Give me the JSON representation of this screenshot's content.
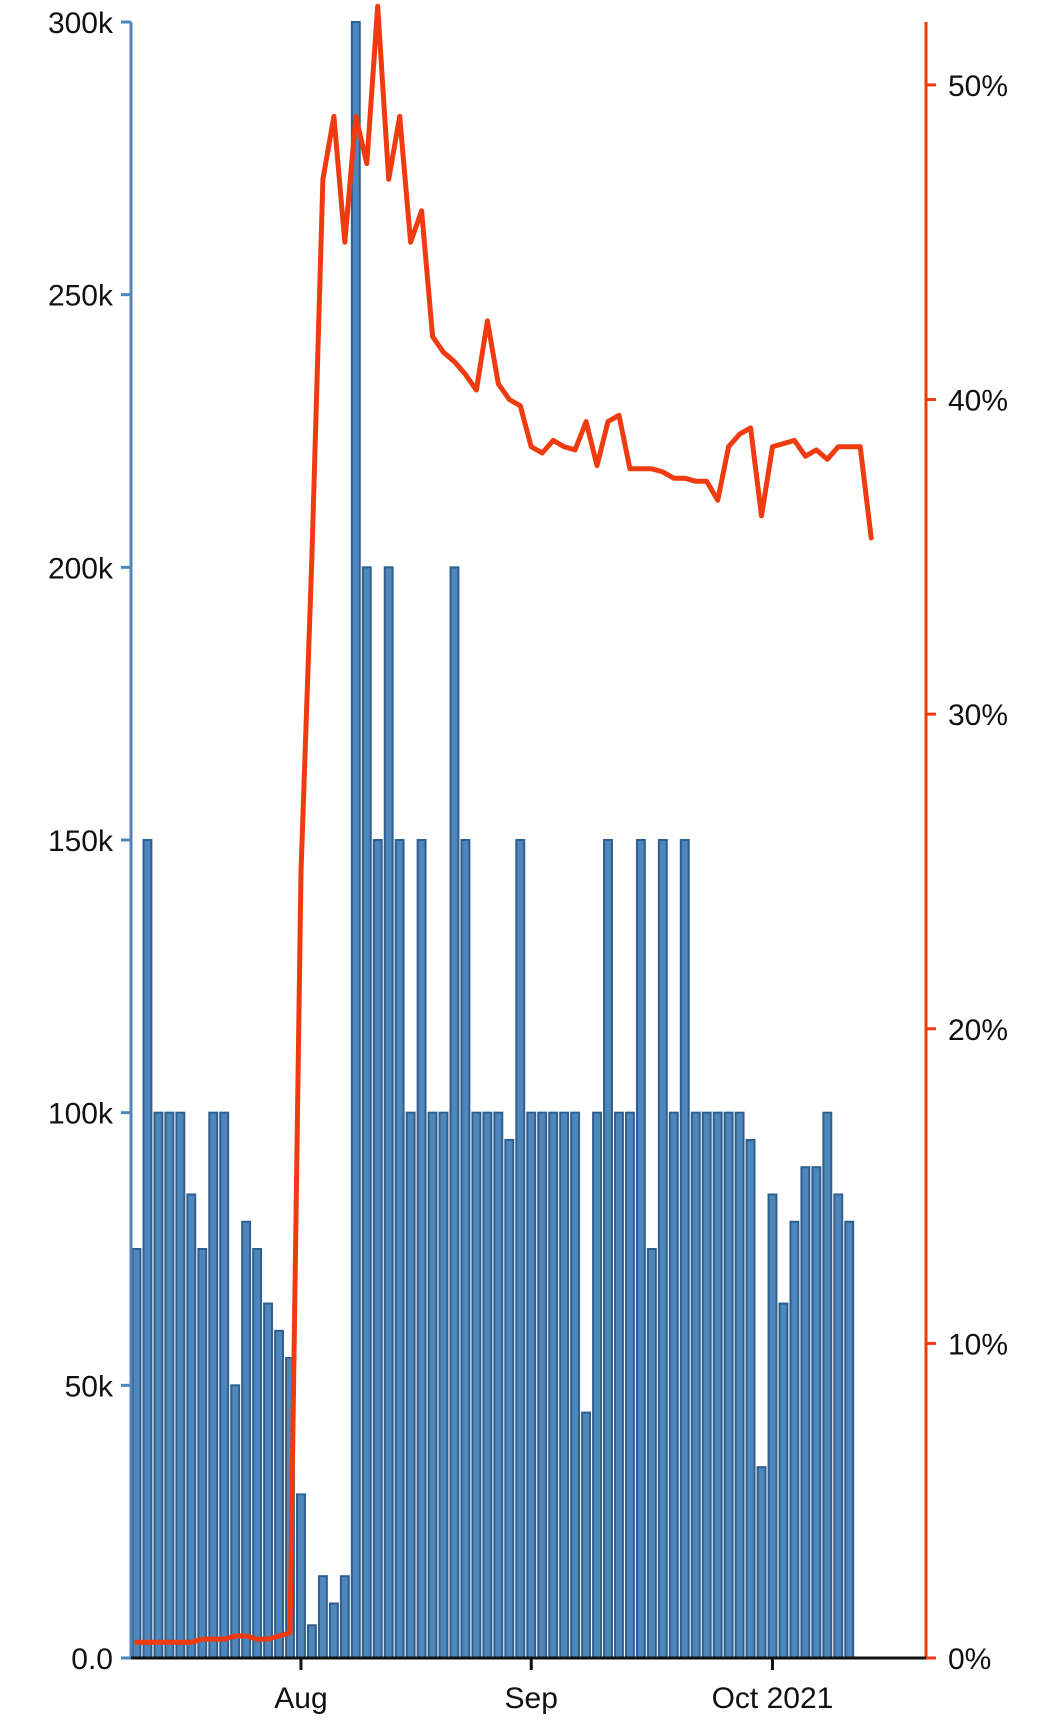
{
  "chart_data": {
    "type": "bar",
    "title": "",
    "xlabel": "",
    "ylabel": "",
    "ylim_left": [
      0,
      300000
    ],
    "ylim_right": [
      0,
      52
    ],
    "left_ticks": [
      {
        "value": 0,
        "label": "0.0"
      },
      {
        "value": 50000,
        "label": "50k"
      },
      {
        "value": 100000,
        "label": "100k"
      },
      {
        "value": 150000,
        "label": "150k"
      },
      {
        "value": 200000,
        "label": "200k"
      },
      {
        "value": 250000,
        "label": "250k"
      },
      {
        "value": 300000,
        "label": "300k"
      }
    ],
    "right_ticks": [
      {
        "value": 0,
        "label": "0%"
      },
      {
        "value": 10,
        "label": "10%"
      },
      {
        "value": 20,
        "label": "20%"
      },
      {
        "value": 30,
        "label": "30%"
      },
      {
        "value": 40,
        "label": "40%"
      },
      {
        "value": 50,
        "label": "50%"
      }
    ],
    "x_ticks": [
      {
        "value": 15,
        "label": "Aug"
      },
      {
        "value": 36,
        "label": "Sep"
      },
      {
        "value": 58,
        "label": "Oct 2021"
      }
    ],
    "x_range": [
      -0.5,
      72
    ],
    "bar_color": "#4f86bb",
    "line_color": "#f03a10",
    "left_axis_color": "#4f86bb",
    "right_axis_color": "#f03a10",
    "series": [
      {
        "axis": "left",
        "values": [
          75000,
          150000,
          100000,
          100000,
          100000,
          85000,
          75000,
          100000,
          100000,
          50000,
          80000,
          75000,
          65000,
          60000,
          55000,
          30000,
          6000,
          15000,
          10000,
          15000,
          300000,
          200000,
          150000,
          200000,
          150000,
          100000,
          150000,
          100000,
          100000,
          200000,
          150000,
          100000,
          100000,
          100000,
          95000,
          150000,
          100000,
          100000,
          100000,
          100000,
          100000,
          45000,
          100000,
          150000,
          100000,
          100000,
          150000,
          75000,
          150000,
          100000,
          150000,
          100000,
          100000,
          100000,
          100000,
          100000,
          95000,
          35000,
          85000,
          65000,
          80000,
          90000,
          90000,
          100000,
          85000,
          80000
        ]
      },
      {
        "axis": "right",
        "values": [
          0.5,
          0.5,
          0.5,
          0.5,
          0.5,
          0.5,
          0.6,
          0.6,
          0.6,
          0.7,
          0.7,
          0.6,
          0.6,
          0.7,
          0.8,
          25.0,
          35.0,
          47.0,
          49.0,
          45.0,
          49.0,
          47.5,
          52.5,
          47.0,
          49.0,
          45.0,
          46.0,
          42.0,
          41.5,
          41.2,
          40.8,
          40.3,
          42.5,
          40.5,
          40.0,
          39.8,
          38.5,
          38.3,
          38.7,
          38.5,
          38.4,
          39.3,
          37.9,
          39.3,
          39.5,
          37.8,
          37.8,
          37.8,
          37.7,
          37.5,
          37.5,
          37.4,
          37.4,
          36.8,
          38.5,
          38.9,
          39.1,
          36.3,
          38.5,
          38.6,
          38.7,
          38.2,
          38.4,
          38.1,
          38.5,
          38.5,
          38.5,
          35.6
        ]
      }
    ]
  }
}
